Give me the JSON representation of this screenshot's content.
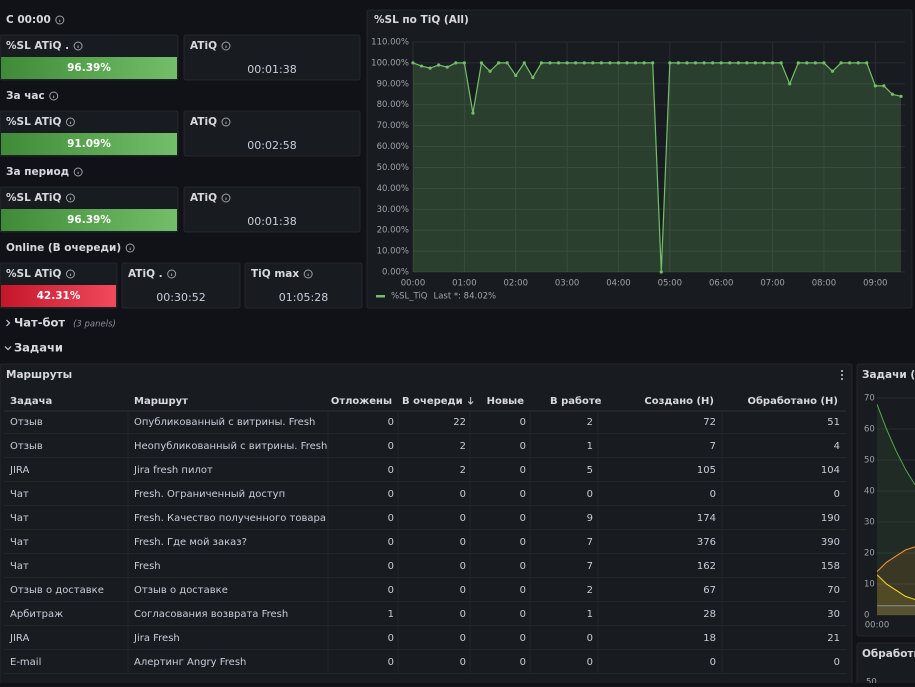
{
  "sections": [
    {
      "title": "С 00:00",
      "panels": [
        {
          "title": "%SL ATiQ .",
          "value": "96.39%",
          "color": "#56a64b"
        },
        {
          "title": "ATiQ",
          "value": "00:01:38"
        }
      ]
    },
    {
      "title": "За час",
      "panels": [
        {
          "title": "%SL ATiQ",
          "value": "91.09%",
          "color": "#56a64b"
        },
        {
          "title": "ATiQ",
          "value": "00:02:58"
        }
      ]
    },
    {
      "title": "За период",
      "panels": [
        {
          "title": "%SL ATiQ",
          "value": "96.39%",
          "color": "#56a64b"
        },
        {
          "title": "ATiQ",
          "value": "00:01:38"
        }
      ]
    },
    {
      "title": "Online (В очереди)",
      "panels": [
        {
          "title": "%SL ATiQ",
          "value": "42.31%",
          "color": "#e02f44"
        },
        {
          "title": "ATiQ .",
          "value": "00:30:52"
        },
        {
          "title": "TiQ max",
          "value": "01:05:28"
        }
      ]
    }
  ],
  "sl_chart": {
    "type": "line",
    "title": "%SL по TiQ (All)",
    "x": [
      "00:00",
      "00:10",
      "00:20",
      "00:30",
      "00:40",
      "00:50",
      "01:00",
      "01:10",
      "01:20",
      "01:30",
      "01:40",
      "01:50",
      "02:00",
      "02:10",
      "02:20",
      "02:30",
      "02:40",
      "02:50",
      "03:00",
      "03:10",
      "03:20",
      "03:30",
      "03:40",
      "03:50",
      "04:00",
      "04:10",
      "04:20",
      "04:30",
      "04:40",
      "04:50",
      "05:00",
      "05:10",
      "05:20",
      "05:30",
      "05:40",
      "05:50",
      "06:00",
      "06:10",
      "06:20",
      "06:30",
      "06:40",
      "06:50",
      "07:00",
      "07:10",
      "07:20",
      "07:30",
      "07:40",
      "07:50",
      "08:00",
      "08:10",
      "08:20",
      "08:30",
      "08:40",
      "08:50",
      "09:00",
      "09:10",
      "09:20",
      "09:30"
    ],
    "series": [
      {
        "name": "%SL_TiQ",
        "color": "#73bf69",
        "values": [
          100,
          98.5,
          97.5,
          99,
          98,
          100,
          100,
          76,
          100,
          96,
          100,
          100,
          94,
          100,
          93,
          100,
          100,
          100,
          100,
          100,
          100,
          100,
          100,
          100,
          100,
          100,
          100,
          100,
          100,
          0,
          100,
          100,
          100,
          100,
          100,
          100,
          100,
          100,
          100,
          100,
          100,
          100,
          100,
          100,
          90,
          100,
          100,
          100,
          100,
          96,
          100,
          100,
          100,
          100,
          89,
          89,
          85,
          84.02
        ]
      }
    ],
    "legend_stat": "Last *: 84.02%",
    "xlim": [
      "00:00",
      "09:30"
    ],
    "xticks": [
      "00:00",
      "01:00",
      "02:00",
      "03:00",
      "04:00",
      "05:00",
      "06:00",
      "07:00",
      "08:00",
      "09:00"
    ],
    "ylim": [
      0,
      110
    ],
    "yticks": [
      {
        "value": 0,
        "label": "0.00%"
      },
      {
        "value": 10,
        "label": "10.00%"
      },
      {
        "value": 20,
        "label": "20.00%"
      },
      {
        "value": 30,
        "label": "30.00%"
      },
      {
        "value": 40,
        "label": "40.00%"
      },
      {
        "value": 50,
        "label": "50.00%"
      },
      {
        "value": 60,
        "label": "60.00%"
      },
      {
        "value": 70,
        "label": "70.00%"
      },
      {
        "value": 80,
        "label": "80.00%"
      },
      {
        "value": 90,
        "label": "90.00%"
      },
      {
        "value": 100,
        "label": "100.00%"
      },
      {
        "value": 110,
        "label": "110.00%"
      }
    ],
    "grid": true
  },
  "rows": [
    {
      "title": "Чат-бот",
      "note": "(3 panels)",
      "collapsed": true
    },
    {
      "title": "Задачи",
      "collapsed": false
    }
  ],
  "table": {
    "title": "Маршруты",
    "columns": [
      "Задача",
      "Маршрут",
      "Отложены",
      "В очереди",
      "Новые",
      "В работе",
      "Создано (H)",
      "Обработано (H)"
    ],
    "rows": [
      [
        "Отзыв",
        "Опубликованный с витрины. Fresh",
        0,
        22,
        0,
        2,
        72,
        51
      ],
      [
        "Отзыв",
        "Неопубликованный с витрины. Fresh",
        0,
        2,
        0,
        1,
        7,
        4
      ],
      [
        "JIRA",
        "Jira fresh пилот",
        0,
        2,
        0,
        5,
        105,
        104
      ],
      [
        "Чат",
        "Fresh. Ограниченный доступ",
        0,
        0,
        0,
        0,
        0,
        0
      ],
      [
        "Чат",
        "Fresh. Качество полученного товара",
        0,
        0,
        0,
        9,
        174,
        190
      ],
      [
        "Чат",
        "Fresh. Где мой заказ?",
        0,
        0,
        0,
        7,
        376,
        390
      ],
      [
        "Чат",
        "Fresh",
        0,
        0,
        0,
        7,
        162,
        158
      ],
      [
        "Отзыв о доставке",
        "Отзыв о доставке",
        0,
        0,
        0,
        2,
        67,
        70
      ],
      [
        "Арбитраж",
        "Согласования возврата Fresh",
        1,
        0,
        0,
        1,
        28,
        30
      ],
      [
        "JIRA",
        "Jira Fresh",
        0,
        0,
        0,
        0,
        18,
        21
      ],
      [
        "E-mail",
        "Алертинг Angry Fresh",
        0,
        0,
        0,
        0,
        0,
        0
      ]
    ]
  },
  "tasks_chart": {
    "type": "line",
    "title": "Задачи (All",
    "x": [
      "00:00",
      "00:10",
      "00:20",
      "00:30",
      "00:40"
    ],
    "series": [
      {
        "color": "#56a64b",
        "values": [
          68,
          60,
          53,
          47,
          42
        ]
      },
      {
        "color": "#ff9830",
        "values": [
          14,
          17,
          19,
          21,
          22
        ]
      },
      {
        "color": "#fade2a",
        "values": [
          13,
          10,
          8,
          6,
          5
        ]
      },
      {
        "color": "#8e8e8e",
        "values": [
          3,
          3,
          3,
          3,
          3
        ]
      }
    ],
    "xlim": [
      "00:00",
      "00:40"
    ],
    "xticks": [
      "00:00"
    ],
    "ylim": [
      0,
      70
    ],
    "yticks": [
      0,
      10,
      20,
      30,
      40,
      50,
      60,
      70
    ]
  },
  "processing_panel": {
    "title": "Обработка",
    "yticks": [
      50
    ]
  }
}
